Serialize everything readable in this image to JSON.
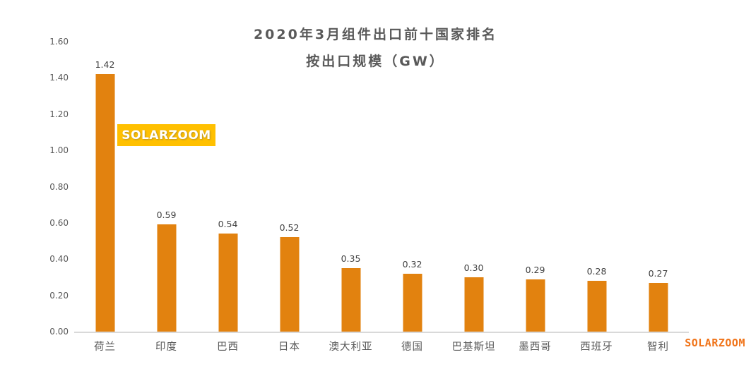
{
  "watermark_badge": {
    "label": "SOLARZOOM"
  },
  "footer_logo": {
    "label": "SOLARZOOM"
  },
  "colors": {
    "background": "#FFFFFF",
    "bar": "#E2820F",
    "badge_bg": "#FFC000",
    "badge_text": "#FFFFFF",
    "title_text": "#595959",
    "axis_text": "#595959",
    "data_label_text": "#404040",
    "axis_line": "#D9D9D9",
    "logo_text": "#F07318"
  },
  "chart_data": {
    "type": "bar",
    "title": "2020年3月组件出口前十国家排名",
    "subtitle": "按出口规模（GW）",
    "categories": [
      "荷兰",
      "印度",
      "巴西",
      "日本",
      "澳大利亚",
      "德国",
      "巴基斯坦",
      "墨西哥",
      "西班牙",
      "智利"
    ],
    "values": [
      1.42,
      0.59,
      0.54,
      0.52,
      0.35,
      0.32,
      0.3,
      0.29,
      0.28,
      0.27
    ],
    "value_labels": [
      "1.42",
      "0.59",
      "0.54",
      "0.52",
      "0.35",
      "0.32",
      "0.30",
      "0.29",
      "0.28",
      "0.27"
    ],
    "xlabel": "",
    "ylabel": "",
    "ylim": [
      0,
      1.6
    ],
    "yticks": [
      "0.00",
      "0.20",
      "0.40",
      "0.60",
      "0.80",
      "1.00",
      "1.20",
      "1.40",
      "1.60"
    ],
    "grid": false,
    "legend": "none"
  }
}
